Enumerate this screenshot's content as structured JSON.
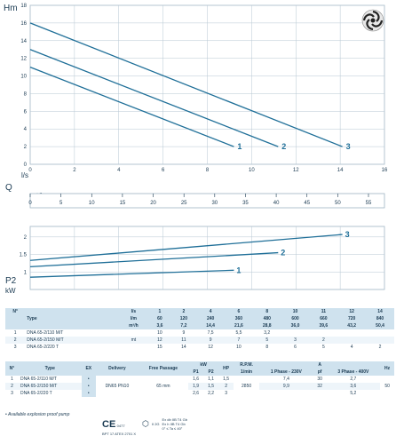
{
  "labels": {
    "hm": "Hm",
    "ls": "l/s",
    "q": "Q",
    "m3h": "m³/h",
    "p2": "P2",
    "kw": "kW"
  },
  "chart_data": [
    {
      "type": "line",
      "name": "head",
      "xlabel": "l/s",
      "ylabel": "Hm",
      "xlim": [
        0,
        16
      ],
      "ylim": [
        0,
        18
      ],
      "x_ticks": [
        0,
        2,
        4,
        6,
        8,
        10,
        12,
        14,
        16
      ],
      "y_ticks": [
        0,
        2,
        4,
        6,
        8,
        10,
        12,
        14,
        16,
        18
      ],
      "grid": true,
      "series": [
        {
          "name": "1",
          "x": [
            0,
            9.2
          ],
          "y": [
            11,
            2
          ]
        },
        {
          "name": "2",
          "x": [
            0,
            11.2
          ],
          "y": [
            13,
            2
          ]
        },
        {
          "name": "3",
          "x": [
            0,
            14.1
          ],
          "y": [
            16,
            2
          ]
        }
      ]
    },
    {
      "type": "axis",
      "name": "flow-m3h",
      "xlabel": "m³/h",
      "xlim": [
        0,
        57.6
      ],
      "x_ticks": [
        0,
        5,
        10,
        15,
        20,
        25,
        30,
        35,
        40,
        45,
        50,
        55
      ]
    },
    {
      "type": "line",
      "name": "power",
      "ylabel": "kW",
      "xlim": [
        0,
        16
      ],
      "ylim": [
        0.5,
        2.3
      ],
      "y_ticks": [
        1,
        1.5,
        2
      ],
      "grid": true,
      "series": [
        {
          "name": "1",
          "x": [
            0,
            9.2
          ],
          "y": [
            0.85,
            1.05
          ]
        },
        {
          "name": "2",
          "x": [
            0,
            11.2
          ],
          "y": [
            1.15,
            1.55
          ]
        },
        {
          "name": "3",
          "x": [
            0,
            14.1
          ],
          "y": [
            1.33,
            2.07
          ]
        }
      ]
    }
  ],
  "table1": {
    "rows": [
      [
        "N°",
        "",
        "l/s",
        "1",
        "2",
        "4",
        "6",
        "8",
        "10",
        "11",
        "12",
        "14"
      ],
      [
        "",
        "Type",
        "l/m",
        "60",
        "120",
        "240",
        "360",
        "480",
        "600",
        "660",
        "720",
        "840"
      ],
      [
        "",
        "",
        "m³/h",
        "3,6",
        "7,2",
        "14,4",
        "21,6",
        "28,8",
        "36,0",
        "39,6",
        "43,2",
        "50,4"
      ],
      [
        "1",
        "DNA 65-2/110 M/T",
        "",
        "10",
        "9",
        "7,5",
        "5,5",
        "3,2",
        "",
        "",
        "",
        ""
      ],
      [
        "2",
        "DNA 65-2/150 M/T",
        "mt",
        "12",
        "11",
        "9",
        "7",
        "5",
        "3",
        "2",
        "",
        ""
      ],
      [
        "3",
        "DNA 65-2/220 T",
        "",
        "15",
        "14",
        "12",
        "10",
        "8",
        "6",
        "5",
        "4",
        "2"
      ]
    ]
  },
  "table2": {
    "head1": [
      "N°",
      "Type",
      "EX",
      "Delivery",
      "Free Passage",
      "kW",
      "HP",
      "R.P.M.",
      "A",
      "Hz"
    ],
    "head2": [
      "P1",
      "P2",
      "1/min",
      "1 Phase - 230V",
      "pf",
      "3 Phase - 400V"
    ],
    "rows": [
      [
        "1",
        "DNA 65-2/110 M/T",
        "•",
        "1,6",
        "1,1",
        "1,5",
        "7,4",
        "30",
        "2,7"
      ],
      [
        "2",
        "DNA 65-2/150 M/T",
        "•",
        "1,9",
        "1,5",
        "2",
        "9,9",
        "32",
        "3,6"
      ],
      [
        "3",
        "DNA 65-2/220 T",
        "•",
        "2,6",
        "2,2",
        "3",
        "",
        "",
        "5,2"
      ]
    ],
    "delivery": "DN65 PN10",
    "free_passage": "65 mm",
    "rpm": "2850",
    "hz": "50"
  },
  "footer": {
    "note": "• Available explosion proof pump",
    "ce": "CE",
    "ce_sub": "0477",
    "cert_line": "BPT 17 ATEX 2701 X",
    "ex_lines": [
      "Ex db IIB T4 Gb",
      "Ex h IIB T4 Gb",
      "0° ≤ Ta ≤ 40°"
    ],
    "ex_prefix": "II 2G"
  },
  "colors": {
    "curve": "#1f6f98",
    "grid": "#b7c7d3",
    "header_fill": "#cfe2ee",
    "text": "#1a3a52"
  }
}
